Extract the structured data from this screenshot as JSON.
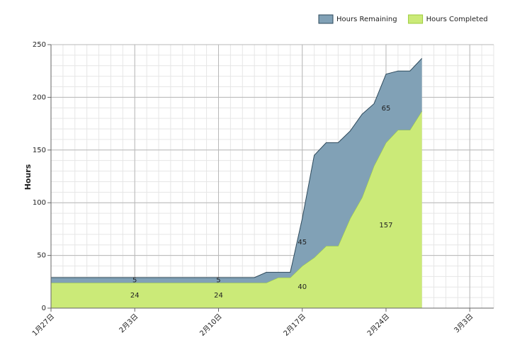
{
  "chart_data": {
    "type": "stacked_area",
    "y_label": "Hours",
    "x": [
      27,
      28,
      29,
      30,
      31,
      32,
      33,
      34,
      35,
      36,
      37,
      38,
      39,
      40,
      41,
      42,
      43,
      44,
      45,
      46,
      47,
      48,
      49,
      50,
      51,
      52,
      53,
      54,
      55,
      56,
      57,
      58
    ],
    "series": [
      {
        "name": "Hours Remaining",
        "color": "#81a1b6",
        "stroke": "#2e4a5c",
        "values": [
          5,
          5,
          5,
          5,
          5,
          5,
          5,
          5,
          5,
          5,
          5,
          5,
          5,
          5,
          5,
          5,
          5,
          5,
          10,
          5,
          5,
          45,
          97,
          98,
          98,
          83,
          79,
          59,
          65,
          56,
          56,
          50
        ],
        "value_labels": [
          null,
          null,
          null,
          null,
          null,
          null,
          null,
          "5",
          null,
          null,
          null,
          null,
          null,
          null,
          "5",
          null,
          null,
          null,
          null,
          null,
          null,
          "45",
          null,
          null,
          null,
          null,
          null,
          null,
          "65",
          null,
          null,
          null
        ]
      },
      {
        "name": "Hours Completed",
        "color": "#cbea78",
        "stroke": "#9ccc3c",
        "values": [
          24,
          24,
          24,
          24,
          24,
          24,
          24,
          24,
          24,
          24,
          24,
          24,
          24,
          24,
          24,
          24,
          24,
          24,
          24,
          29,
          29,
          40,
          48,
          59,
          59,
          85,
          105,
          135,
          157,
          169,
          169,
          187
        ],
        "value_labels": [
          null,
          null,
          null,
          null,
          null,
          null,
          null,
          "24",
          null,
          null,
          null,
          null,
          null,
          null,
          "24",
          null,
          null,
          null,
          null,
          null,
          null,
          "40",
          null,
          null,
          null,
          null,
          null,
          null,
          "157",
          null,
          null,
          null
        ]
      }
    ],
    "xlim": [
      27,
      64
    ],
    "xticks": [
      {
        "value": 27,
        "label": "1月27日"
      },
      {
        "value": 34,
        "label": "2月3日"
      },
      {
        "value": 41,
        "label": "2月10日"
      },
      {
        "value": 48,
        "label": "2月17日"
      },
      {
        "value": 55,
        "label": "2月24日"
      },
      {
        "value": 62,
        "label": "3月3日"
      }
    ],
    "ylim": [
      0,
      250
    ],
    "yticks": [
      0,
      50,
      100,
      150,
      200,
      250
    ],
    "grid": true,
    "minor_grid": true,
    "legend": "top-right"
  }
}
